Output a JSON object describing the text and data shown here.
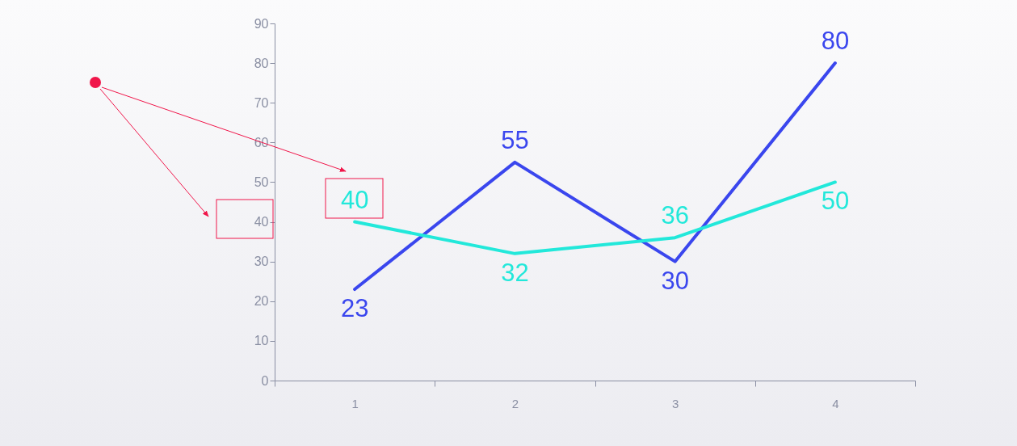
{
  "chart_data": {
    "type": "line",
    "categories": [
      "1",
      "2",
      "3",
      "4"
    ],
    "series": [
      {
        "color": "#3a46ee",
        "values": [
          23,
          55,
          30,
          80
        ]
      },
      {
        "color": "#22e8da",
        "values": [
          40,
          32,
          36,
          50
        ]
      }
    ],
    "ylim": [
      0,
      90
    ],
    "yticks": [
      0,
      10,
      20,
      30,
      40,
      50,
      60,
      70,
      80,
      90
    ],
    "grid": false,
    "legend": false,
    "data_labels": true
  }
}
